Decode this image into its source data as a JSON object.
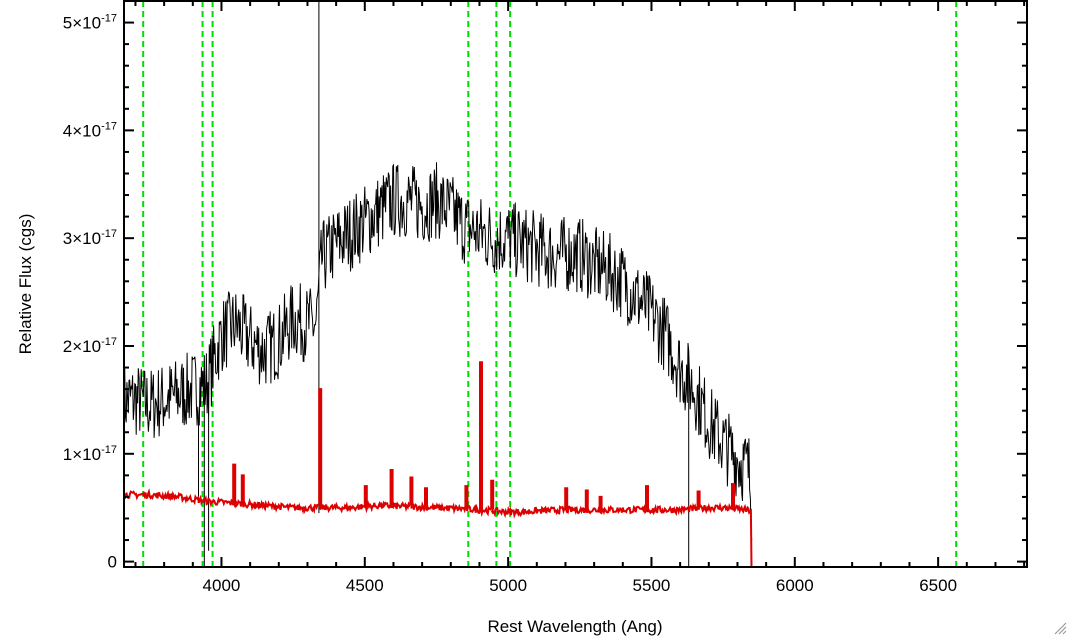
{
  "chart_data": {
    "type": "line",
    "xlabel": "Rest Wavelength (Ang)",
    "ylabel": "Relative Flux (cgs)",
    "xlim": [
      3660,
      6810
    ],
    "ylim": [
      -5e-19,
      5.2e-17
    ],
    "grid": false,
    "x_ticks": [
      {
        "value": 4000,
        "label": "4000"
      },
      {
        "value": 4500,
        "label": "4500"
      },
      {
        "value": 5000,
        "label": "5000"
      },
      {
        "value": 5500,
        "label": "5500"
      },
      {
        "value": 6000,
        "label": "6000"
      },
      {
        "value": 6500,
        "label": "6500"
      }
    ],
    "y_ticks": [
      {
        "value": 0,
        "label": "0",
        "mant": "",
        "exp": ""
      },
      {
        "value": 1e-17,
        "label": "1×10^-17",
        "mant": "1×10",
        "exp": "-17"
      },
      {
        "value": 2e-17,
        "label": "2×10^-17",
        "mant": "2×10",
        "exp": "-17"
      },
      {
        "value": 3e-17,
        "label": "3×10^-17",
        "mant": "3×10",
        "exp": "-17"
      },
      {
        "value": 4e-17,
        "label": "4×10^-17",
        "mant": "4×10",
        "exp": "-17"
      },
      {
        "value": 5e-17,
        "label": "5×10^-17",
        "mant": "5×10",
        "exp": "-17"
      }
    ],
    "vertical_lines": {
      "color": "#00dd00",
      "style": "dashed",
      "x": [
        3727,
        3934,
        3969,
        4861,
        4959,
        5007,
        6563
      ]
    },
    "series": [
      {
        "color": "#000000",
        "kind": "observed spectrum (noisy)",
        "x": [
          3660,
          3700,
          3750,
          3800,
          3850,
          3900,
          3950,
          4000,
          4050,
          4100,
          4150,
          4200,
          4250,
          4300,
          4330,
          4350,
          4400,
          4450,
          4500,
          4550,
          4600,
          4650,
          4700,
          4750,
          4800,
          4850,
          4900,
          4950,
          5000,
          5050,
          5100,
          5150,
          5200,
          5250,
          5300,
          5350,
          5400,
          5450,
          5500,
          5550,
          5600,
          5650,
          5700,
          5750,
          5800,
          5840,
          5850
        ],
        "y": [
          1.5e-17,
          1.5e-17,
          1.45e-17,
          1.5e-17,
          1.55e-17,
          1.6e-17,
          1.65e-17,
          2.1e-17,
          2.2e-17,
          2.05e-17,
          1.95e-17,
          2.05e-17,
          2.25e-17,
          2.2e-17,
          2.2e-17,
          2.8e-17,
          2.95e-17,
          3.05e-17,
          3.15e-17,
          3.25e-17,
          3.35e-17,
          3.35e-17,
          3.3e-17,
          3.35e-17,
          3.25e-17,
          3.1e-17,
          3.05e-17,
          3e-17,
          3e-17,
          2.95e-17,
          2.9e-17,
          2.85e-17,
          2.85e-17,
          2.85e-17,
          2.75e-17,
          2.7e-17,
          2.6e-17,
          2.45e-17,
          2.3e-17,
          2.1e-17,
          1.8e-17,
          1.6e-17,
          1.3e-17,
          1.1e-17,
          9.5e-18,
          8.5e-18,
          5e-18
        ],
        "noise": 3.6e-18,
        "spikes": [
          {
            "x": 4340,
            "y": 5.2e-17
          },
          {
            "x": 4340,
            "y": 4.5e-18
          },
          {
            "x": 3920,
            "y": 6e-18
          },
          {
            "x": 3940,
            "y": -5e-19
          },
          {
            "x": 3955,
            "y": 1e-18
          },
          {
            "x": 5630,
            "y": -5e-19
          }
        ]
      },
      {
        "color": "#dd0000",
        "kind": "model fit",
        "x": [
          3660,
          3750,
          3850,
          3950,
          4050,
          4150,
          4250,
          4350,
          4450,
          4550,
          4650,
          4750,
          4850,
          4950,
          5000,
          5050,
          5100,
          5200,
          5300,
          5400,
          5500,
          5600,
          5700,
          5750,
          5800,
          5849,
          5851,
          6810
        ],
        "y": [
          6.2e-18,
          6.2e-18,
          6e-18,
          5.6e-18,
          5.4e-18,
          5.2e-18,
          5e-18,
          5e-18,
          5e-18,
          5.2e-18,
          5.1e-18,
          5e-18,
          4.9e-18,
          4.7e-18,
          4.6e-18,
          4.6e-18,
          4.7e-18,
          4.8e-18,
          4.8e-18,
          4.8e-18,
          4.8e-18,
          4.8e-18,
          5e-18,
          5e-18,
          4.9e-18,
          4.7e-18,
          -5e-19,
          -5e-19
        ],
        "lines": [
          {
            "x": 4040,
            "y": 9e-18
          },
          {
            "x": 4070,
            "y": 8e-18
          },
          {
            "x": 4340,
            "y": 1.6e-17
          },
          {
            "x": 4500,
            "y": 7e-18
          },
          {
            "x": 4590,
            "y": 8.5e-18
          },
          {
            "x": 4660,
            "y": 7.8e-18
          },
          {
            "x": 4710,
            "y": 6.8e-18
          },
          {
            "x": 4850,
            "y": 7e-18
          },
          {
            "x": 4901,
            "y": 1.85e-17
          },
          {
            "x": 4940,
            "y": 7.5e-18
          },
          {
            "x": 5200,
            "y": 6.8e-18
          },
          {
            "x": 5270,
            "y": 6.6e-18
          },
          {
            "x": 5320,
            "y": 6e-18
          },
          {
            "x": 5480,
            "y": 7e-18
          },
          {
            "x": 5660,
            "y": 6.5e-18
          },
          {
            "x": 5780,
            "y": 7.2e-18
          }
        ]
      }
    ]
  }
}
